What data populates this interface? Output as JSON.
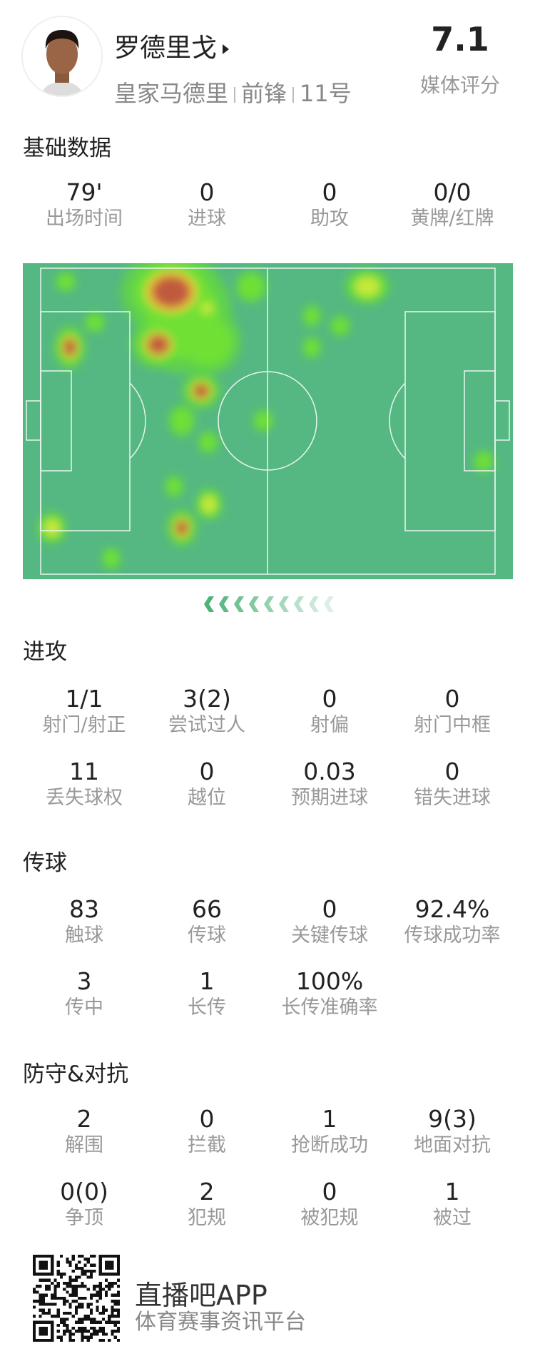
{
  "player": {
    "name": "罗德里戈",
    "team": "皇家马德里",
    "position": "前锋",
    "number": "11号",
    "rating": "7.1",
    "rating_label": "媒体评分"
  },
  "sections": [
    {
      "title": "基础数据",
      "rows": [
        [
          {
            "value": "79'",
            "label": "出场时间"
          },
          {
            "value": "0",
            "label": "进球"
          },
          {
            "value": "0",
            "label": "助攻"
          },
          {
            "value": "0/0",
            "label": "黄牌/红牌"
          }
        ]
      ]
    },
    {
      "title": "进攻",
      "rows": [
        [
          {
            "value": "1/1",
            "label": "射门/射正"
          },
          {
            "value": "3(2)",
            "label": "尝试过人"
          },
          {
            "value": "0",
            "label": "射偏"
          },
          {
            "value": "0",
            "label": "射门中框"
          }
        ],
        [
          {
            "value": "11",
            "label": "丢失球权"
          },
          {
            "value": "0",
            "label": "越位"
          },
          {
            "value": "0.03",
            "label": "预期进球"
          },
          {
            "value": "0",
            "label": "错失进球"
          }
        ]
      ]
    },
    {
      "title": "传球",
      "rows": [
        [
          {
            "value": "83",
            "label": "触球"
          },
          {
            "value": "66",
            "label": "传球"
          },
          {
            "value": "0",
            "label": "关键传球"
          },
          {
            "value": "92.4%",
            "label": "传球成功率"
          }
        ],
        [
          {
            "value": "3",
            "label": "传中"
          },
          {
            "value": "1",
            "label": "长传"
          },
          {
            "value": "100%",
            "label": "长传准确率"
          }
        ]
      ]
    },
    {
      "title": "防守&对抗",
      "rows": [
        [
          {
            "value": "2",
            "label": "解围"
          },
          {
            "value": "0",
            "label": "拦截"
          },
          {
            "value": "1",
            "label": "抢断成功"
          },
          {
            "value": "9(3)",
            "label": "地面对抗"
          }
        ],
        [
          {
            "value": "0(0)",
            "label": "争顶"
          },
          {
            "value": "2",
            "label": "犯规"
          },
          {
            "value": "0",
            "label": "被犯规"
          },
          {
            "value": "1",
            "label": "被过"
          }
        ]
      ]
    }
  ],
  "heatmap": {
    "pitch_color": "#55b882",
    "line_color": "#e8f5ee",
    "attack_direction": "left"
  },
  "footer": {
    "app_name": "直播吧APP",
    "tagline": "体育赛事资讯平台"
  }
}
